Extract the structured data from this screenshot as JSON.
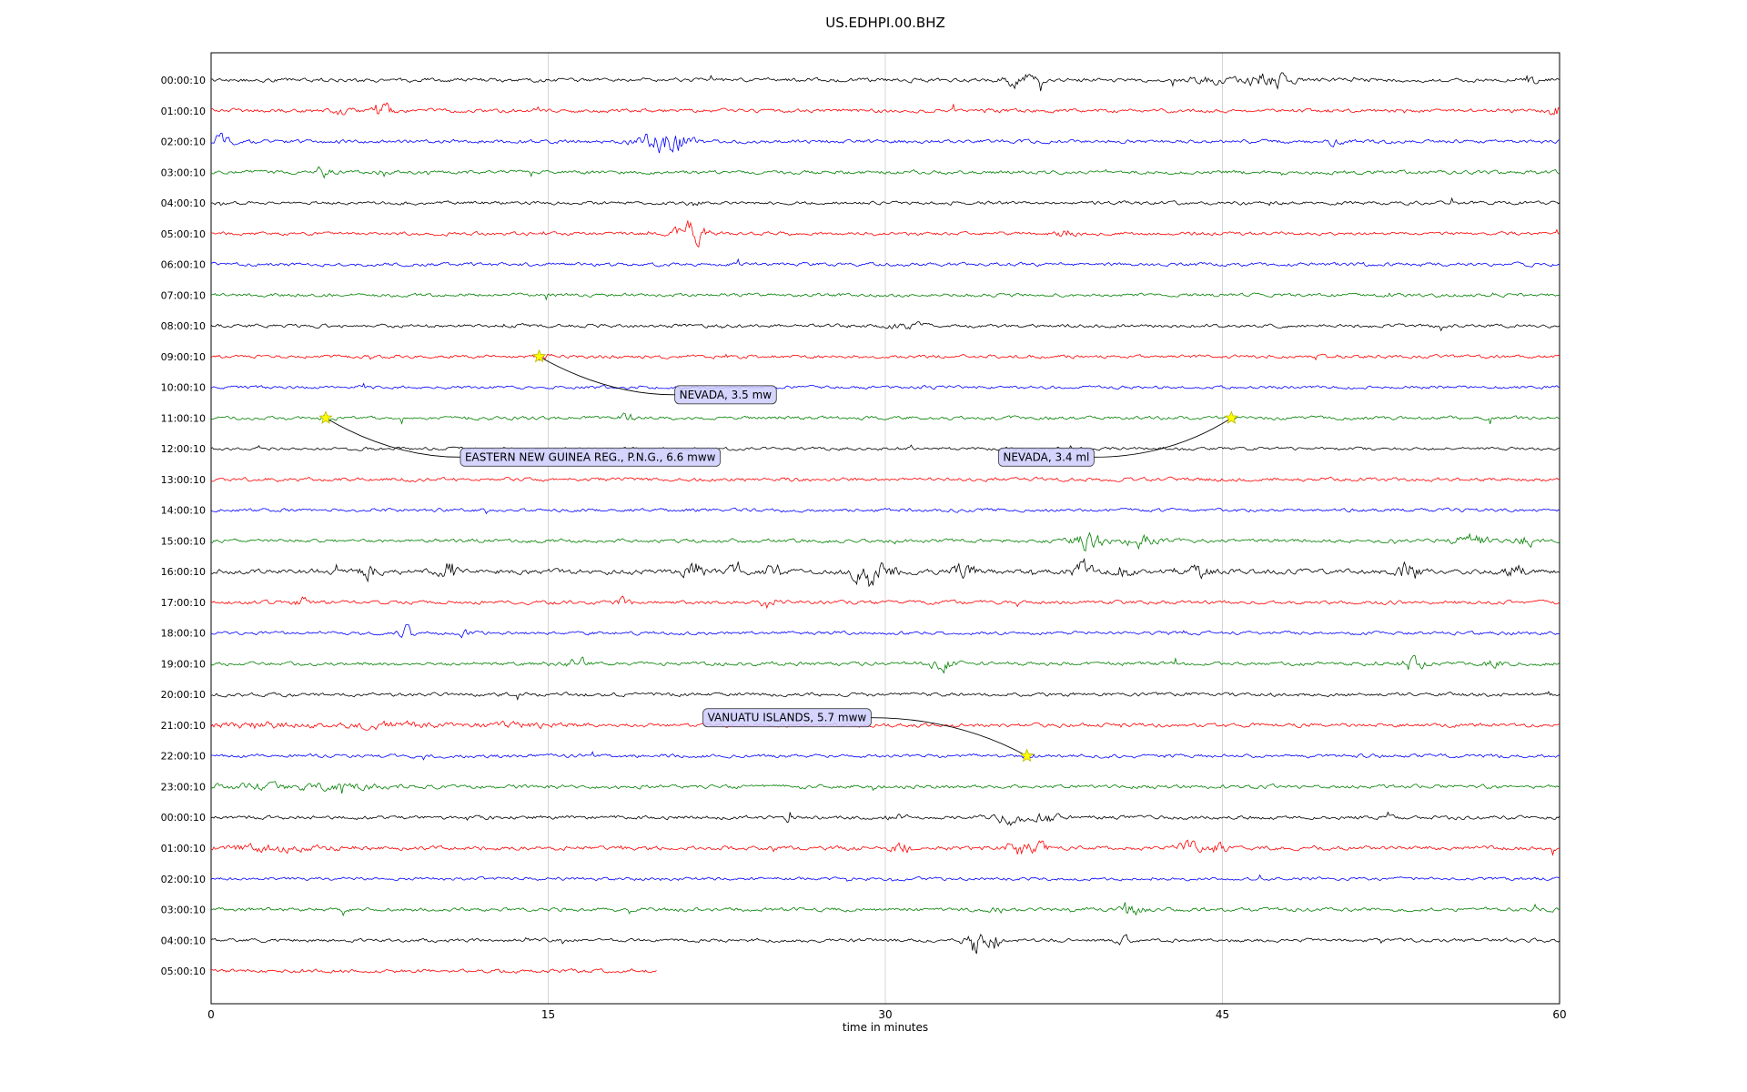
{
  "chart_data": {
    "type": "line",
    "subtype": "seismogram-helicorder-dayplot",
    "title": "US.EDHPI.00.BHZ",
    "xlabel": "time in minutes",
    "x_ticks": [
      0,
      15,
      30,
      45,
      60
    ],
    "x_range_minutes": [
      0,
      60
    ],
    "trace_color_cycle": [
      "#000000",
      "#ff0000",
      "#0000ff",
      "#008000"
    ],
    "style": {
      "event_box_fill": "#ccccff",
      "event_box_border": "#444444",
      "grid_color": "#cccccc",
      "frame_color": "#000000",
      "star_fill": "#ffff00",
      "star_edge": "#b8b800"
    },
    "rows": [
      {
        "label": "00:00:10",
        "color": "#000000",
        "duration_min": 60,
        "noise": 0.62,
        "bursts": [
          {
            "x": 36,
            "a": 3,
            "w": 0.8
          },
          {
            "x": 47,
            "a": 4,
            "w": 1.0
          },
          {
            "x": 44.5,
            "a": 1.5,
            "w": 0.6
          },
          {
            "x": 58.6,
            "a": 2,
            "w": 0.5
          }
        ]
      },
      {
        "label": "01:00:10",
        "color": "#ff0000",
        "duration_min": 60,
        "noise": 0.6,
        "bursts": [
          {
            "x": 5.8,
            "a": 2,
            "w": 0.4
          },
          {
            "x": 7.6,
            "a": 4,
            "w": 0.5
          },
          {
            "x": 14.6,
            "a": 1.5,
            "w": 0.3
          },
          {
            "x": 59.8,
            "a": 3,
            "w": 0.3
          }
        ]
      },
      {
        "label": "02:00:10",
        "color": "#0000ff",
        "duration_min": 60,
        "noise": 0.6,
        "bursts": [
          {
            "x": 0.4,
            "a": 3,
            "w": 0.5
          },
          {
            "x": 19.9,
            "a": 5,
            "w": 1.0
          },
          {
            "x": 21,
            "a": 2.5,
            "w": 0.6
          },
          {
            "x": 50,
            "a": 1.5,
            "w": 0.4
          }
        ]
      },
      {
        "label": "03:00:10",
        "color": "#008000",
        "duration_min": 60,
        "noise": 0.6,
        "bursts": [
          {
            "x": 5,
            "a": 3.5,
            "w": 0.25
          },
          {
            "x": 7.6,
            "a": 2.5,
            "w": 0.25
          }
        ]
      },
      {
        "label": "04:00:10",
        "color": "#000000",
        "duration_min": 60,
        "noise": 0.55,
        "bursts": [
          {
            "x": 21.4,
            "a": 1.8,
            "w": 0.3
          }
        ]
      },
      {
        "label": "05:00:10",
        "color": "#ff0000",
        "duration_min": 60,
        "noise": 0.55,
        "bursts": [
          {
            "x": 21.3,
            "a": 7,
            "w": 0.7
          },
          {
            "x": 38,
            "a": 1.8,
            "w": 0.4
          }
        ]
      },
      {
        "label": "06:00:10",
        "color": "#0000ff",
        "duration_min": 60,
        "noise": 0.55,
        "bursts": []
      },
      {
        "label": "07:00:10",
        "color": "#008000",
        "duration_min": 60,
        "noise": 0.55,
        "bursts": []
      },
      {
        "label": "08:00:10",
        "color": "#000000",
        "duration_min": 60,
        "noise": 0.55,
        "bursts": [
          {
            "x": 31,
            "a": 1.3,
            "w": 0.8
          }
        ]
      },
      {
        "label": "09:00:10",
        "color": "#ff0000",
        "duration_min": 60,
        "noise": 0.55,
        "bursts": [
          {
            "x": 14.8,
            "a": 1.3,
            "w": 0.3
          }
        ]
      },
      {
        "label": "10:00:10",
        "color": "#0000ff",
        "duration_min": 60,
        "noise": 0.5,
        "bursts": []
      },
      {
        "label": "11:00:10",
        "color": "#008000",
        "duration_min": 60,
        "noise": 0.55,
        "bursts": [
          {
            "x": 5.2,
            "a": 1.2,
            "w": 0.3
          },
          {
            "x": 18.5,
            "a": 2.2,
            "w": 0.35
          }
        ]
      },
      {
        "label": "12:00:10",
        "color": "#000000",
        "duration_min": 60,
        "noise": 0.5,
        "bursts": []
      },
      {
        "label": "13:00:10",
        "color": "#ff0000",
        "duration_min": 60,
        "noise": 0.6,
        "bursts": []
      },
      {
        "label": "14:00:10",
        "color": "#0000ff",
        "duration_min": 60,
        "noise": 0.55,
        "bursts": []
      },
      {
        "label": "15:00:10",
        "color": "#008000",
        "duration_min": 60,
        "noise": 0.6,
        "bursts": [
          {
            "x": 39,
            "a": 4.5,
            "w": 0.7
          },
          {
            "x": 41.3,
            "a": 3.5,
            "w": 0.6
          },
          {
            "x": 56,
            "a": 3.5,
            "w": 0.7
          },
          {
            "x": 58.5,
            "a": 2.5,
            "w": 0.5
          }
        ]
      },
      {
        "label": "16:00:10",
        "color": "#000000",
        "duration_min": 60,
        "noise": 0.8,
        "bursts": [
          {
            "x": 7,
            "a": 2.5,
            "w": 0.4
          },
          {
            "x": 10.5,
            "a": 3.5,
            "w": 0.35
          },
          {
            "x": 21.5,
            "a": 3.5,
            "w": 0.5
          },
          {
            "x": 23.5,
            "a": 3,
            "w": 0.4
          },
          {
            "x": 25,
            "a": 2.5,
            "w": 0.4
          },
          {
            "x": 29.2,
            "a": 6,
            "w": 0.6
          },
          {
            "x": 30,
            "a": 3,
            "w": 0.5
          },
          {
            "x": 33.5,
            "a": 2.5,
            "w": 0.5
          },
          {
            "x": 38.7,
            "a": 3.5,
            "w": 0.5
          },
          {
            "x": 40.5,
            "a": 2.5,
            "w": 0.4
          },
          {
            "x": 44,
            "a": 2.5,
            "w": 0.4
          },
          {
            "x": 53.3,
            "a": 3.5,
            "w": 0.5
          },
          {
            "x": 58,
            "a": 2.5,
            "w": 0.4
          }
        ]
      },
      {
        "label": "17:00:10",
        "color": "#ff0000",
        "duration_min": 60,
        "noise": 0.6,
        "bursts": [
          {
            "x": 4,
            "a": 2.5,
            "w": 0.3
          },
          {
            "x": 18.3,
            "a": 3.5,
            "w": 0.35
          },
          {
            "x": 24.8,
            "a": 3.5,
            "w": 0.3
          }
        ]
      },
      {
        "label": "18:00:10",
        "color": "#0000ff",
        "duration_min": 60,
        "noise": 0.55,
        "bursts": [
          {
            "x": 8.7,
            "a": 3.5,
            "w": 0.3
          },
          {
            "x": 11.3,
            "a": 2.5,
            "w": 0.3
          }
        ]
      },
      {
        "label": "19:00:10",
        "color": "#008000",
        "duration_min": 60,
        "noise": 0.6,
        "bursts": [
          {
            "x": 16.3,
            "a": 2.5,
            "w": 0.5
          },
          {
            "x": 32.5,
            "a": 3,
            "w": 0.6
          },
          {
            "x": 53.5,
            "a": 2.5,
            "w": 0.5
          },
          {
            "x": 57,
            "a": 2,
            "w": 0.4
          }
        ]
      },
      {
        "label": "20:00:10",
        "color": "#000000",
        "duration_min": 60,
        "noise": 0.6,
        "bursts": []
      },
      {
        "label": "21:00:10",
        "color": "#ff0000",
        "duration_min": 60,
        "noise": 0.6,
        "bursts": [
          {
            "x": 2,
            "a": 1.2,
            "w": 2
          },
          {
            "x": 8,
            "a": 1.2,
            "w": 2.5
          },
          {
            "x": 14,
            "a": 1,
            "w": 2
          }
        ]
      },
      {
        "label": "22:00:10",
        "color": "#0000ff",
        "duration_min": 60,
        "noise": 0.55,
        "bursts": [
          {
            "x": 36.4,
            "a": 1.3,
            "w": 0.3
          }
        ]
      },
      {
        "label": "23:00:10",
        "color": "#008000",
        "duration_min": 60,
        "noise": 0.6,
        "bursts": [
          {
            "x": 2,
            "a": 1.3,
            "w": 2
          },
          {
            "x": 6,
            "a": 1,
            "w": 2
          }
        ]
      },
      {
        "label": "00:00:10",
        "color": "#000000",
        "duration_min": 60,
        "noise": 0.6,
        "bursts": [
          {
            "x": 25.7,
            "a": 5,
            "w": 0.15
          },
          {
            "x": 30.5,
            "a": 1.5,
            "w": 0.4
          },
          {
            "x": 35.5,
            "a": 3.5,
            "w": 0.6
          },
          {
            "x": 37.2,
            "a": 2.5,
            "w": 0.5
          }
        ]
      },
      {
        "label": "01:00:10",
        "color": "#ff0000",
        "duration_min": 60,
        "noise": 0.65,
        "bursts": [
          {
            "x": 3,
            "a": 1.2,
            "w": 2.5
          },
          {
            "x": 30.7,
            "a": 2.5,
            "w": 0.4
          },
          {
            "x": 35.8,
            "a": 4,
            "w": 0.5
          },
          {
            "x": 36.8,
            "a": 3,
            "w": 0.4
          },
          {
            "x": 43.5,
            "a": 2.5,
            "w": 0.5
          },
          {
            "x": 44.8,
            "a": 2,
            "w": 0.4
          }
        ]
      },
      {
        "label": "02:00:10",
        "color": "#0000ff",
        "duration_min": 60,
        "noise": 0.5,
        "bursts": []
      },
      {
        "label": "03:00:10",
        "color": "#008000",
        "duration_min": 60,
        "noise": 0.6,
        "bursts": [
          {
            "x": 35,
            "a": 1.5,
            "w": 0.3
          },
          {
            "x": 41,
            "a": 4,
            "w": 0.4
          }
        ]
      },
      {
        "label": "04:00:10",
        "color": "#000000",
        "duration_min": 60,
        "noise": 0.55,
        "bursts": [
          {
            "x": 33.9,
            "a": 7,
            "w": 0.4
          },
          {
            "x": 34.8,
            "a": 5,
            "w": 0.35
          },
          {
            "x": 40.6,
            "a": 1.8,
            "w": 0.3
          }
        ]
      },
      {
        "label": "05:00:10",
        "color": "#ff0000",
        "duration_min": 19.8,
        "noise": 0.6,
        "bursts": []
      }
    ],
    "events": [
      {
        "label": "NEVADA, 3.5 mw",
        "row": 9,
        "x_min": 14.6,
        "box_dx": 149,
        "box_dy": 33
      },
      {
        "label": "EASTERN NEW GUINEA REG., P.N.G., 6.6 mww",
        "row": 11,
        "x_min": 5.1,
        "box_dx": 148,
        "box_dy": 34
      },
      {
        "label": "NEVADA, 3.4 ml",
        "row": 11,
        "x_min": 45.4,
        "box_dx": -256,
        "box_dy": 34
      },
      {
        "label": "VANUATU ISLANDS, 5.7 mww",
        "row": 22,
        "x_min": 36.3,
        "box_dx": -356,
        "box_dy": -51
      }
    ]
  }
}
